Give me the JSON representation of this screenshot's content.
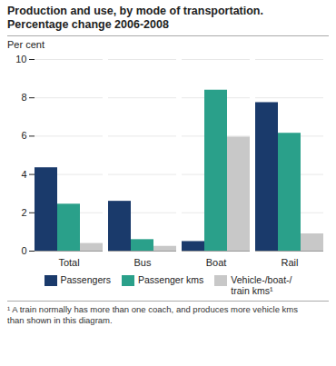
{
  "chart_data": {
    "type": "bar",
    "title": "Production and use, by mode of transportation.\nPercentage change 2006-2008",
    "ylabel": "Per cent",
    "categories": [
      "Total",
      "Bus",
      "Boat",
      "Rail"
    ],
    "series": [
      {
        "name": "Passengers",
        "color": "#1a3a6b",
        "values": [
          4.35,
          2.6,
          0.5,
          7.75
        ]
      },
      {
        "name": "Passenger kms",
        "color": "#2aa08a",
        "values": [
          2.45,
          0.6,
          8.4,
          6.15
        ]
      },
      {
        "name": "Vehicle-/boat-/\ntrain kms¹",
        "color": "#c8c8c8",
        "values": [
          0.4,
          0.25,
          5.95,
          0.9
        ]
      }
    ],
    "ylim": [
      0,
      10
    ],
    "yticks": [
      0,
      2,
      4,
      6,
      8,
      10
    ],
    "grid": true,
    "legend": "bottom",
    "footnote": "¹ A train normally has more than one coach, and produces more vehicle kms\nthan shown in this diagram."
  }
}
